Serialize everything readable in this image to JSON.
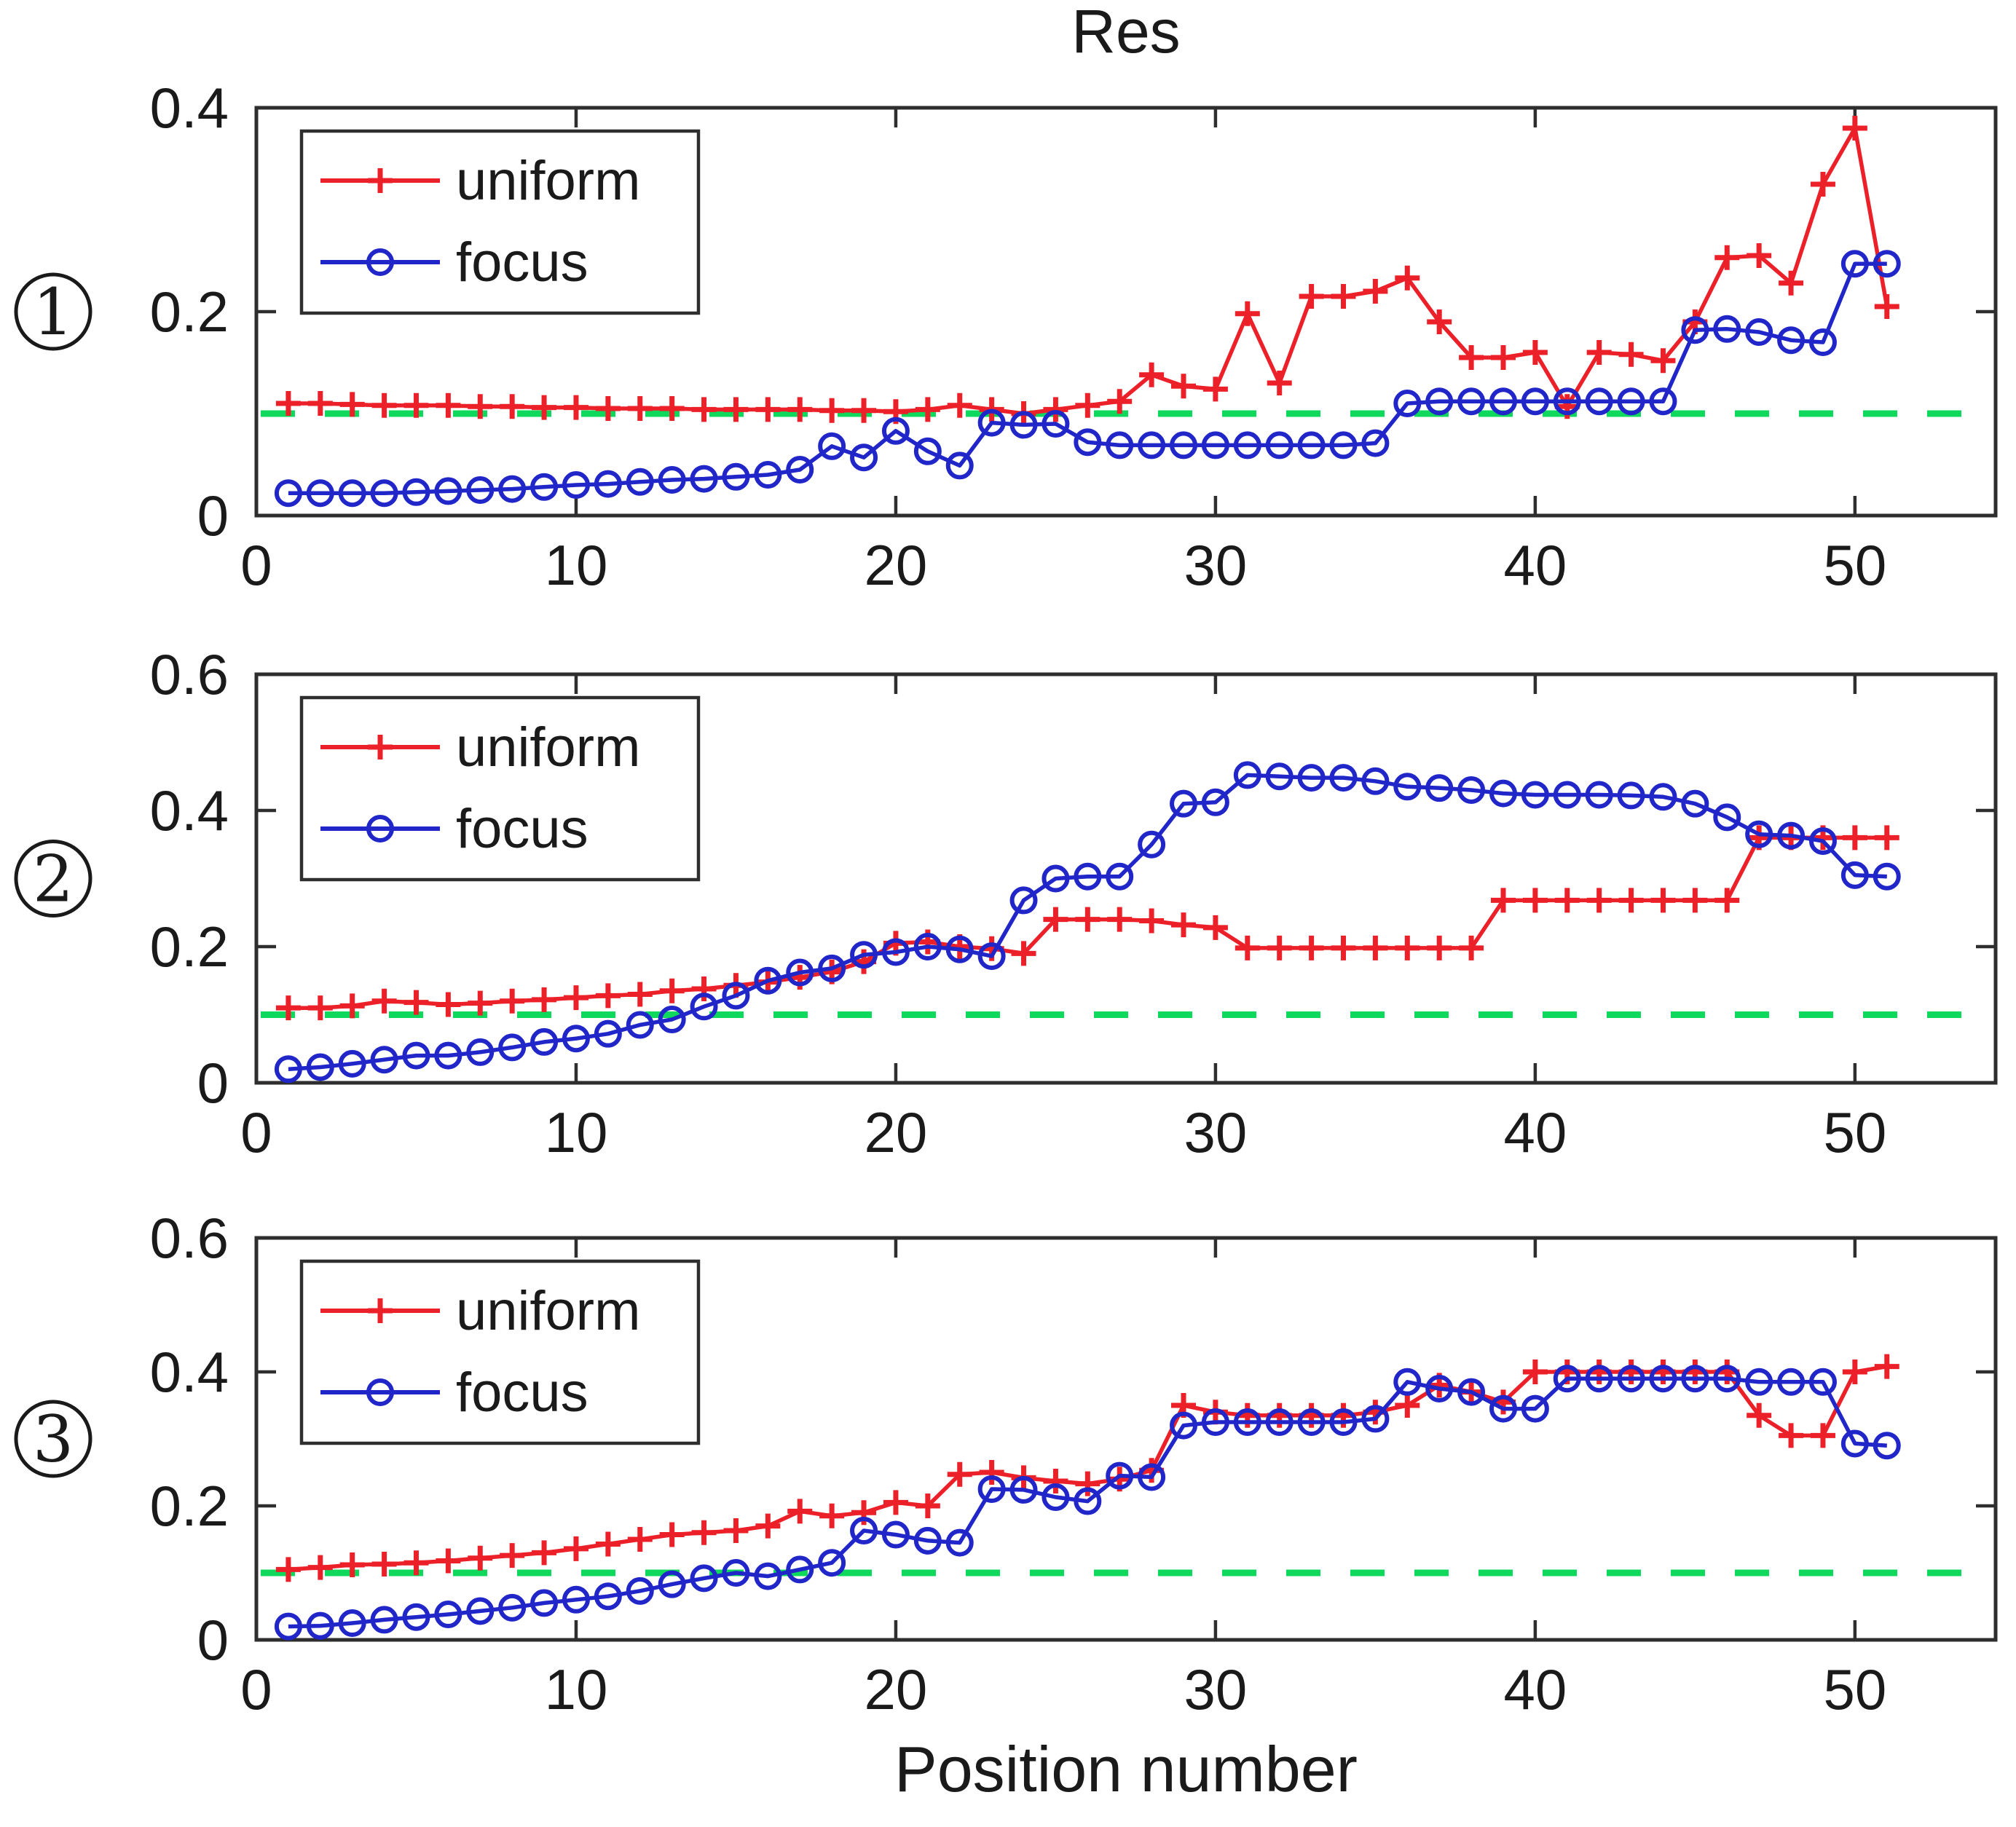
{
  "figure": {
    "title": "Res",
    "xlabel": "Position number",
    "threshold_value": 0.1,
    "background": "#ffffff"
  },
  "colors": {
    "uniform": "#ec2028",
    "focus": "#2126c9",
    "threshold": "#0fd95c",
    "axis": "#2e2e2e",
    "text": "#1a1a1a"
  },
  "legend": {
    "entries": [
      {
        "label": "uniform",
        "marker": "plus",
        "color_key": "uniform"
      },
      {
        "label": "focus",
        "marker": "circle",
        "color_key": "focus"
      }
    ],
    "position": "top-left"
  },
  "chart_data": [
    {
      "type": "line",
      "badge": "1",
      "title": "Res",
      "xlabel": "Position number",
      "x_start": 1,
      "x_step": 1,
      "xlim": [
        0,
        54.4
      ],
      "xticks": [
        0,
        10,
        20,
        30,
        40,
        50
      ],
      "xtick_labels": [
        "0",
        "10",
        "20",
        "30",
        "40",
        "50"
      ],
      "ylim": [
        0,
        0.4
      ],
      "yticks": [
        0,
        0.2,
        0.4
      ],
      "ytick_labels": [
        "0",
        "0.2",
        "0.4"
      ],
      "grid": false,
      "threshold": 0.1,
      "legend_position": "top-left",
      "series": [
        {
          "name": "uniform",
          "marker": "plus",
          "color_key": "uniform",
          "values": [
            0.11,
            0.11,
            0.109,
            0.108,
            0.108,
            0.108,
            0.107,
            0.107,
            0.106,
            0.106,
            0.105,
            0.105,
            0.105,
            0.104,
            0.104,
            0.104,
            0.104,
            0.103,
            0.103,
            0.102,
            0.104,
            0.108,
            0.104,
            0.1,
            0.104,
            0.108,
            0.112,
            0.138,
            0.127,
            0.124,
            0.198,
            0.13,
            0.215,
            0.215,
            0.22,
            0.233,
            0.19,
            0.155,
            0.155,
            0.16,
            0.107,
            0.16,
            0.158,
            0.152,
            0.19,
            0.253,
            0.255,
            0.228,
            0.325,
            0.38,
            0.205
          ]
        },
        {
          "name": "focus",
          "marker": "circle",
          "color_key": "focus",
          "values": [
            0.022,
            0.022,
            0.022,
            0.022,
            0.023,
            0.024,
            0.025,
            0.026,
            0.028,
            0.03,
            0.031,
            0.033,
            0.035,
            0.036,
            0.038,
            0.04,
            0.045,
            0.068,
            0.057,
            0.083,
            0.063,
            0.049,
            0.091,
            0.089,
            0.09,
            0.072,
            0.069,
            0.069,
            0.069,
            0.069,
            0.069,
            0.069,
            0.069,
            0.069,
            0.071,
            0.11,
            0.112,
            0.112,
            0.112,
            0.112,
            0.112,
            0.112,
            0.112,
            0.112,
            0.182,
            0.183,
            0.18,
            0.172,
            0.17,
            0.247,
            0.247
          ]
        }
      ]
    },
    {
      "type": "line",
      "badge": "2",
      "x_start": 1,
      "x_step": 1,
      "xlim": [
        0,
        54.4
      ],
      "xticks": [
        0,
        10,
        20,
        30,
        40,
        50
      ],
      "xtick_labels": [
        "0",
        "10",
        "20",
        "30",
        "40",
        "50"
      ],
      "ylim": [
        0,
        0.6
      ],
      "yticks": [
        0,
        0.2,
        0.4,
        0.6
      ],
      "ytick_labels": [
        "0",
        "0.2",
        "0.4",
        "0.6"
      ],
      "grid": false,
      "threshold": 0.1,
      "legend_position": "top-left",
      "series": [
        {
          "name": "uniform",
          "marker": "plus",
          "color_key": "uniform",
          "values": [
            0.11,
            0.11,
            0.113,
            0.12,
            0.118,
            0.115,
            0.117,
            0.12,
            0.122,
            0.125,
            0.128,
            0.13,
            0.135,
            0.138,
            0.143,
            0.148,
            0.155,
            0.163,
            0.178,
            0.205,
            0.207,
            0.2,
            0.197,
            0.19,
            0.24,
            0.24,
            0.24,
            0.238,
            0.232,
            0.228,
            0.198,
            0.198,
            0.198,
            0.198,
            0.198,
            0.198,
            0.198,
            0.198,
            0.268,
            0.268,
            0.268,
            0.268,
            0.268,
            0.268,
            0.268,
            0.268,
            0.36,
            0.36,
            0.36,
            0.36,
            0.36
          ]
        },
        {
          "name": "focus",
          "marker": "circle",
          "color_key": "focus",
          "values": [
            0.02,
            0.023,
            0.028,
            0.034,
            0.04,
            0.04,
            0.045,
            0.052,
            0.06,
            0.065,
            0.072,
            0.085,
            0.093,
            0.112,
            0.128,
            0.15,
            0.162,
            0.168,
            0.188,
            0.192,
            0.2,
            0.196,
            0.186,
            0.268,
            0.3,
            0.303,
            0.303,
            0.35,
            0.41,
            0.412,
            0.452,
            0.45,
            0.448,
            0.448,
            0.443,
            0.435,
            0.433,
            0.43,
            0.425,
            0.423,
            0.423,
            0.423,
            0.422,
            0.42,
            0.41,
            0.39,
            0.365,
            0.363,
            0.355,
            0.305,
            0.303
          ]
        }
      ]
    },
    {
      "type": "line",
      "badge": "3",
      "x_start": 1,
      "x_step": 1,
      "xlim": [
        0,
        54.4
      ],
      "xticks": [
        0,
        10,
        20,
        30,
        40,
        50
      ],
      "xtick_labels": [
        "0",
        "10",
        "20",
        "30",
        "40",
        "50"
      ],
      "ylim": [
        0,
        0.6
      ],
      "yticks": [
        0,
        0.2,
        0.4,
        0.6
      ],
      "ytick_labels": [
        "0",
        "0.2",
        "0.4",
        "0.6"
      ],
      "grid": false,
      "threshold": 0.1,
      "legend_position": "top-left",
      "series": [
        {
          "name": "uniform",
          "marker": "plus",
          "color_key": "uniform",
          "values": [
            0.105,
            0.108,
            0.112,
            0.113,
            0.115,
            0.118,
            0.122,
            0.126,
            0.13,
            0.136,
            0.143,
            0.15,
            0.157,
            0.16,
            0.163,
            0.17,
            0.192,
            0.185,
            0.19,
            0.205,
            0.2,
            0.247,
            0.25,
            0.242,
            0.237,
            0.233,
            0.24,
            0.253,
            0.35,
            0.34,
            0.335,
            0.335,
            0.335,
            0.335,
            0.34,
            0.35,
            0.38,
            0.37,
            0.355,
            0.4,
            0.4,
            0.4,
            0.4,
            0.4,
            0.4,
            0.4,
            0.335,
            0.305,
            0.305,
            0.4,
            0.408
          ]
        },
        {
          "name": "focus",
          "marker": "circle",
          "color_key": "focus",
          "values": [
            0.02,
            0.021,
            0.025,
            0.03,
            0.034,
            0.038,
            0.043,
            0.048,
            0.055,
            0.06,
            0.065,
            0.073,
            0.083,
            0.092,
            0.1,
            0.095,
            0.105,
            0.115,
            0.163,
            0.157,
            0.148,
            0.145,
            0.225,
            0.224,
            0.213,
            0.207,
            0.245,
            0.243,
            0.32,
            0.325,
            0.325,
            0.325,
            0.325,
            0.325,
            0.33,
            0.385,
            0.375,
            0.37,
            0.345,
            0.345,
            0.39,
            0.39,
            0.39,
            0.39,
            0.39,
            0.39,
            0.385,
            0.385,
            0.385,
            0.293,
            0.29
          ]
        }
      ]
    }
  ]
}
